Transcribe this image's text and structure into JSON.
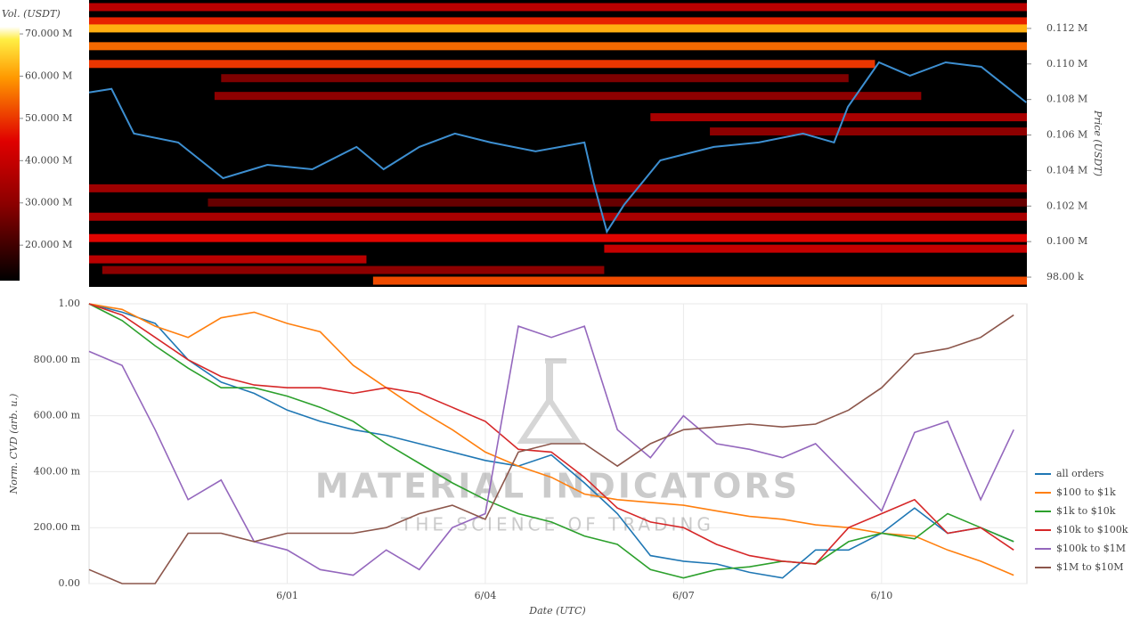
{
  "chart_data": [
    {
      "type": "heatmap",
      "colorbar_label": "Vol. (USDT)",
      "clim": [
        11600000,
        71700000
      ],
      "cticks": [
        {
          "value": 20000000,
          "label": "20.000 M"
        },
        {
          "value": 30000000,
          "label": "30.000 M"
        },
        {
          "value": 40000000,
          "label": "40.000 M"
        },
        {
          "value": 50000000,
          "label": "50.000 M"
        },
        {
          "value": 60000000,
          "label": "60.000 M"
        },
        {
          "value": 70000000,
          "label": "70.000 M"
        }
      ],
      "y_label": "Price (USDT)",
      "xlim": [
        0,
        14.2
      ],
      "ylim": [
        97450,
        113600
      ],
      "yticks": [
        {
          "value": 98000,
          "label": "98.00 k"
        },
        {
          "value": 100000,
          "label": "0.100 M"
        },
        {
          "value": 102000,
          "label": "0.102 M"
        },
        {
          "value": 104000,
          "label": "0.104 M"
        },
        {
          "value": 106000,
          "label": "0.106 M"
        },
        {
          "value": 108000,
          "label": "0.108 M"
        },
        {
          "value": 110000,
          "label": "0.110 M"
        },
        {
          "value": 112000,
          "label": "0.112 M"
        }
      ],
      "bands": [
        {
          "price": 113200,
          "start": 0,
          "end": 14.2,
          "volume": 38000000
        },
        {
          "price": 112400,
          "start": 0,
          "end": 14.2,
          "volume": 48000000
        },
        {
          "price": 112000,
          "start": 0,
          "end": 14.2,
          "volume": 62000000
        },
        {
          "price": 111000,
          "start": 0,
          "end": 14.2,
          "volume": 55000000
        },
        {
          "price": 110000,
          "start": 0,
          "end": 11.9,
          "volume": 50000000
        },
        {
          "price": 109200,
          "start": 2,
          "end": 11.5,
          "volume": 28000000
        },
        {
          "price": 108200,
          "start": 1.9,
          "end": 12.6,
          "volume": 30000000
        },
        {
          "price": 107000,
          "start": 8.5,
          "end": 14.2,
          "volume": 35000000
        },
        {
          "price": 106200,
          "start": 9.4,
          "end": 14.2,
          "volume": 30000000
        },
        {
          "price": 103000,
          "start": 0,
          "end": 14.2,
          "volume": 33000000
        },
        {
          "price": 102200,
          "start": 1.8,
          "end": 14.2,
          "volume": 25000000
        },
        {
          "price": 101400,
          "start": 0,
          "end": 14.2,
          "volume": 35000000
        },
        {
          "price": 100200,
          "start": 0,
          "end": 14.2,
          "volume": 45000000
        },
        {
          "price": 99600,
          "start": 7.8,
          "end": 14.2,
          "volume": 40000000
        },
        {
          "price": 99000,
          "start": 0,
          "end": 4.2,
          "volume": 38000000
        },
        {
          "price": 98400,
          "start": 0.2,
          "end": 7.8,
          "volume": 30000000
        },
        {
          "price": 97800,
          "start": 4.3,
          "end": 14.2,
          "volume": 52000000
        }
      ],
      "price_line": {
        "color": "#3d8fd1",
        "x": [
          0,
          0.34,
          0.68,
          1.35,
          2.03,
          2.7,
          3.38,
          4.05,
          4.46,
          5.0,
          5.54,
          6.08,
          6.76,
          7.5,
          7.64,
          7.84,
          8.1,
          8.65,
          9.46,
          10.14,
          10.81,
          11.28,
          11.49,
          11.96,
          12.43,
          12.97,
          13.51,
          14.19
        ],
        "values": [
          108400,
          108600,
          106080,
          105580,
          103570,
          104320,
          104070,
          105330,
          104070,
          105330,
          106080,
          105580,
          105080,
          105580,
          103320,
          100560,
          102070,
          104570,
          105330,
          105580,
          106080,
          105580,
          107580,
          110090,
          109340,
          110090,
          109840,
          107830
        ]
      }
    },
    {
      "type": "line",
      "x_label": "Date (UTC)",
      "y_label": "Norm. CVD (arb. u.)",
      "xlim": [
        0,
        14.2
      ],
      "ylim": [
        0,
        1
      ],
      "xticks": [
        {
          "value": 3,
          "label": "6/01"
        },
        {
          "value": 6,
          "label": "6/04"
        },
        {
          "value": 9,
          "label": "6/07"
        },
        {
          "value": 12,
          "label": "6/10"
        }
      ],
      "yticks": [
        {
          "value": 0,
          "label": "0.00"
        },
        {
          "value": 0.2,
          "label": "200.00 m"
        },
        {
          "value": 0.4,
          "label": "400.00 m"
        },
        {
          "value": 0.6,
          "label": "600.00 m"
        },
        {
          "value": 0.8,
          "label": "800.00 m"
        },
        {
          "value": 1,
          "label": "1.00"
        }
      ],
      "grid": true,
      "legend": "right",
      "watermark": {
        "title": "MATERIAL INDICATORS",
        "subtitle": "THE SCIENCE OF TRADING"
      },
      "x": [
        0,
        0.5,
        1,
        1.5,
        2,
        2.5,
        3,
        3.5,
        4,
        4.5,
        5,
        5.5,
        6,
        6.5,
        7,
        7.5,
        8,
        8.5,
        9,
        9.5,
        10,
        10.5,
        11,
        11.5,
        12,
        12.5,
        13,
        13.5,
        14
      ],
      "series": [
        {
          "name": "all orders",
          "color": "#1f77b4",
          "values": [
            1.0,
            0.97,
            0.93,
            0.8,
            0.72,
            0.68,
            0.62,
            0.58,
            0.55,
            0.53,
            0.5,
            0.47,
            0.44,
            0.42,
            0.46,
            0.36,
            0.25,
            0.1,
            0.08,
            0.07,
            0.04,
            0.02,
            0.12,
            0.12,
            0.18,
            0.27,
            0.18,
            0.2,
            0.15
          ]
        },
        {
          "name": "$100 to $1k",
          "color": "#ff7f0e",
          "values": [
            1.0,
            0.98,
            0.92,
            0.88,
            0.95,
            0.97,
            0.93,
            0.9,
            0.78,
            0.7,
            0.62,
            0.55,
            0.47,
            0.42,
            0.38,
            0.32,
            0.3,
            0.29,
            0.28,
            0.26,
            0.24,
            0.23,
            0.21,
            0.2,
            0.18,
            0.17,
            0.12,
            0.08,
            0.03
          ]
        },
        {
          "name": "$1k to $10k",
          "color": "#2ca02c",
          "values": [
            1.0,
            0.94,
            0.85,
            0.77,
            0.7,
            0.7,
            0.67,
            0.63,
            0.58,
            0.5,
            0.43,
            0.36,
            0.3,
            0.25,
            0.22,
            0.17,
            0.14,
            0.05,
            0.02,
            0.05,
            0.06,
            0.08,
            0.07,
            0.15,
            0.18,
            0.16,
            0.25,
            0.2,
            0.15
          ]
        },
        {
          "name": "$10k to $100k",
          "color": "#d62728",
          "values": [
            1.0,
            0.96,
            0.88,
            0.8,
            0.74,
            0.71,
            0.7,
            0.7,
            0.68,
            0.7,
            0.68,
            0.63,
            0.58,
            0.48,
            0.47,
            0.38,
            0.27,
            0.22,
            0.2,
            0.14,
            0.1,
            0.08,
            0.07,
            0.2,
            0.25,
            0.3,
            0.18,
            0.2,
            0.12
          ]
        },
        {
          "name": "$100k to $1M",
          "color": "#9467bd",
          "values": [
            0.83,
            0.78,
            0.55,
            0.3,
            0.37,
            0.15,
            0.12,
            0.05,
            0.03,
            0.12,
            0.05,
            0.2,
            0.25,
            0.92,
            0.88,
            0.92,
            0.55,
            0.45,
            0.6,
            0.5,
            0.48,
            0.45,
            0.5,
            0.38,
            0.26,
            0.54,
            0.58,
            0.3,
            0.55
          ]
        },
        {
          "name": "$1M to $10M",
          "color": "#8c564b",
          "values": [
            0.05,
            0.0,
            0.0,
            0.18,
            0.18,
            0.15,
            0.18,
            0.18,
            0.18,
            0.2,
            0.25,
            0.28,
            0.23,
            0.47,
            0.5,
            0.5,
            0.42,
            0.5,
            0.55,
            0.56,
            0.57,
            0.56,
            0.57,
            0.62,
            0.7,
            0.82,
            0.84,
            0.88,
            0.96
          ]
        }
      ]
    }
  ]
}
